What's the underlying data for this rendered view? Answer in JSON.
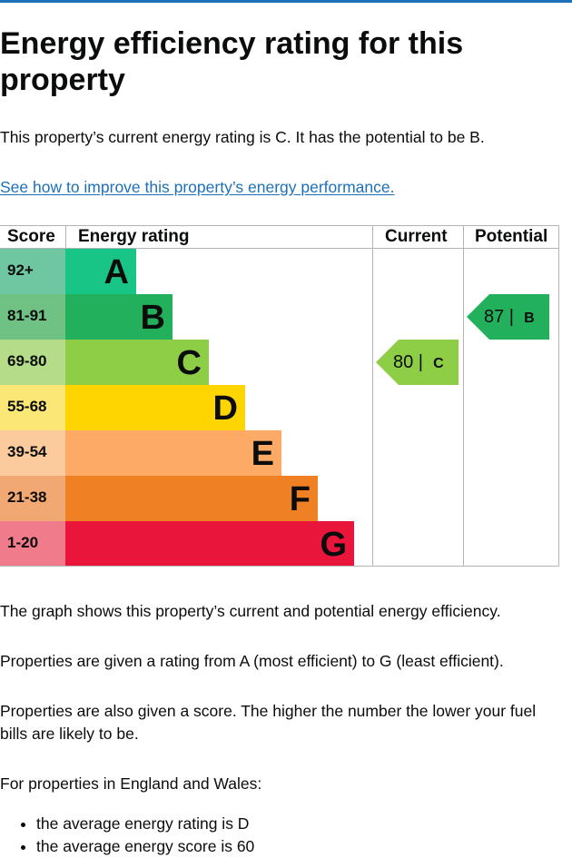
{
  "heading": "Energy efficiency rating for this property",
  "intro": "This property’s current energy rating is C. It has the potential to be B.",
  "improve_link": "See how to improve this property’s energy performance.",
  "chart": {
    "headers": {
      "score": "Score",
      "rating": "Energy rating",
      "current": "Current",
      "potential": "Potential"
    },
    "bands": [
      {
        "score": "92+",
        "letter": "A",
        "score_bg": "#6fc7a1",
        "band_color": "#19c586"
      },
      {
        "score": "81-91",
        "letter": "B",
        "score_bg": "#6fc184",
        "band_color": "#23b05c"
      },
      {
        "score": "69-80",
        "letter": "C",
        "score_bg": "#b4dc89",
        "band_color": "#8dce46"
      },
      {
        "score": "55-68",
        "letter": "D",
        "score_bg": "#fbe775",
        "band_color": "#ffd500"
      },
      {
        "score": "39-54",
        "letter": "E",
        "score_bg": "#fbcb9d",
        "band_color": "#fcaa65"
      },
      {
        "score": "21-38",
        "letter": "F",
        "score_bg": "#f2a873",
        "band_color": "#ef8023"
      },
      {
        "score": "1-20",
        "letter": "G",
        "score_bg": "#f07b8b",
        "band_color": "#e9153b"
      }
    ],
    "current": {
      "score": "80",
      "letter": "C",
      "color": "#8dce46"
    },
    "potential": {
      "score": "87",
      "letter": "B",
      "color": "#23b05c"
    }
  },
  "chart_data": {
    "type": "table",
    "categories": [
      "A",
      "B",
      "C",
      "D",
      "E",
      "F",
      "G"
    ],
    "score_ranges": [
      "92+",
      "81-91",
      "69-80",
      "55-68",
      "39-54",
      "21-38",
      "1-20"
    ],
    "current": {
      "score": 80,
      "rating": "C"
    },
    "potential": {
      "score": 87,
      "rating": "B"
    }
  },
  "para_graph": "The graph shows this property’s current and potential energy efficiency.",
  "para_ratings": "Properties are given a rating from A (most efficient) to G (least efficient).",
  "para_score": "Properties are also given a score. The higher the number the lower your fuel bills are likely to be.",
  "para_england": "For properties in England and Wales:",
  "bullets": [
    "the average energy rating is D",
    "the average energy score is 60"
  ]
}
